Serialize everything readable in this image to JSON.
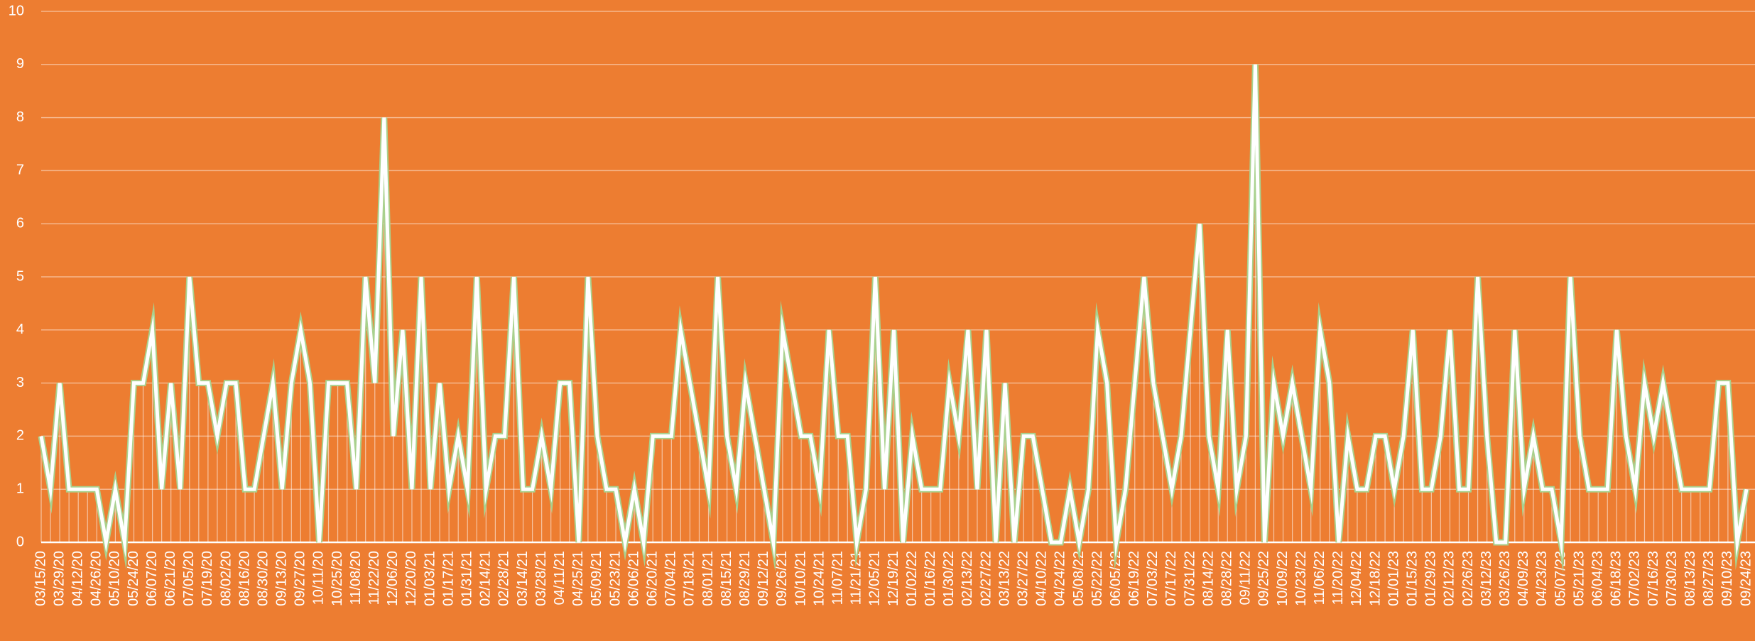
{
  "chart_data": {
    "type": "line",
    "categories": [
      "03/15/20",
      null,
      "03/29/20",
      null,
      "04/12/20",
      null,
      "04/26/20",
      null,
      "05/10/20",
      null,
      "05/24/20",
      null,
      "06/07/20",
      null,
      "06/21/20",
      null,
      "07/05/20",
      null,
      "07/19/20",
      null,
      "08/02/20",
      null,
      "08/16/20",
      null,
      "08/30/20",
      null,
      "09/13/20",
      null,
      "09/27/20",
      null,
      "10/11/20",
      null,
      "10/25/20",
      null,
      "11/08/20",
      null,
      "11/22/20",
      null,
      "12/06/20",
      null,
      "12/20/20",
      null,
      "01/03/21",
      null,
      "01/17/21",
      null,
      "01/31/21",
      null,
      "02/14/21",
      null,
      "02/28/21",
      null,
      "03/14/21",
      null,
      "03/28/21",
      null,
      "04/11/21",
      null,
      "04/25/21",
      null,
      "05/09/21",
      null,
      "05/23/21",
      null,
      "06/06/21",
      null,
      "06/20/21",
      null,
      "07/04/21",
      null,
      "07/18/21",
      null,
      "08/01/21",
      null,
      "08/15/21",
      null,
      "08/29/21",
      null,
      "09/12/21",
      null,
      "09/26/21",
      null,
      "10/10/21",
      null,
      "10/24/21",
      null,
      "11/07/21",
      null,
      "11/21/21",
      null,
      "12/05/21",
      null,
      "12/19/21",
      null,
      "01/02/22",
      null,
      "01/16/22",
      null,
      "01/30/22",
      null,
      "02/13/22",
      null,
      "02/27/22",
      null,
      "03/13/22",
      null,
      "03/27/22",
      null,
      "04/10/22",
      null,
      "04/24/22",
      null,
      "05/08/22",
      null,
      "05/22/22",
      null,
      "06/05/22",
      null,
      "06/19/22",
      null,
      "07/03/22",
      null,
      "07/17/22",
      null,
      "07/31/22",
      null,
      "08/14/22",
      null,
      "08/28/22",
      null,
      "09/11/22",
      null,
      "09/25/22",
      null,
      "10/09/22",
      null,
      "10/23/22",
      null,
      "11/06/22",
      null,
      "11/20/22",
      null,
      "12/04/22",
      null,
      "12/18/22",
      null,
      "01/01/23",
      null,
      "01/15/23",
      null,
      "01/29/23",
      null,
      "02/12/23",
      null,
      "02/26/23",
      null,
      "03/12/23",
      null,
      "03/26/23",
      null,
      "04/09/23",
      null,
      "04/23/23",
      null,
      "05/07/23",
      null,
      "05/21/23",
      null,
      "06/04/23",
      null,
      "06/18/23",
      null,
      "07/02/23",
      null,
      "07/16/23",
      null,
      "07/30/23",
      null,
      "08/13/23",
      null,
      "08/27/23",
      null,
      "09/10/23",
      null,
      "09/24/23"
    ],
    "values": [
      2,
      1,
      3,
      1,
      1,
      1,
      1,
      0,
      1,
      0,
      3,
      3,
      4,
      1,
      3,
      1,
      5,
      3,
      3,
      2,
      3,
      3,
      1,
      1,
      2,
      3,
      1,
      3,
      4,
      3,
      0,
      3,
      3,
      3,
      1,
      5,
      3,
      8,
      2,
      4,
      1,
      5,
      1,
      3,
      1,
      2,
      1,
      5,
      1,
      2,
      2,
      5,
      1,
      1,
      2,
      1,
      3,
      3,
      0,
      5,
      2,
      1,
      1,
      0,
      1,
      0,
      2,
      2,
      2,
      4,
      3,
      2,
      1,
      5,
      2,
      1,
      3,
      2,
      1,
      0,
      4,
      3,
      2,
      2,
      1,
      4,
      2,
      2,
      0,
      1,
      5,
      1,
      4,
      0,
      2,
      1,
      1,
      1,
      3,
      2,
      4,
      1,
      4,
      0,
      3,
      0,
      2,
      2,
      1,
      0,
      0,
      1,
      0,
      1,
      4,
      3,
      0,
      1,
      3,
      5,
      3,
      2,
      1,
      2,
      4,
      6,
      2,
      1,
      4,
      1,
      2,
      9,
      0,
      3,
      2,
      3,
      2,
      1,
      4,
      3,
      0,
      2,
      1,
      1,
      2,
      2,
      1,
      2,
      4,
      1,
      1,
      2,
      4,
      1,
      1,
      5,
      2,
      0,
      0,
      4,
      1,
      2,
      1,
      1,
      0,
      5,
      2,
      1,
      1,
      1,
      4,
      2,
      1,
      3,
      2,
      3,
      2,
      1,
      1,
      1,
      1,
      3,
      3,
      0,
      1
    ],
    "color": "#ffffff",
    "edge_color": "#a9d18e",
    "ylim": [
      0,
      10
    ],
    "yticks": [
      0,
      1,
      2,
      3,
      4,
      5,
      6,
      7,
      8,
      9,
      10
    ],
    "grid": true
  }
}
